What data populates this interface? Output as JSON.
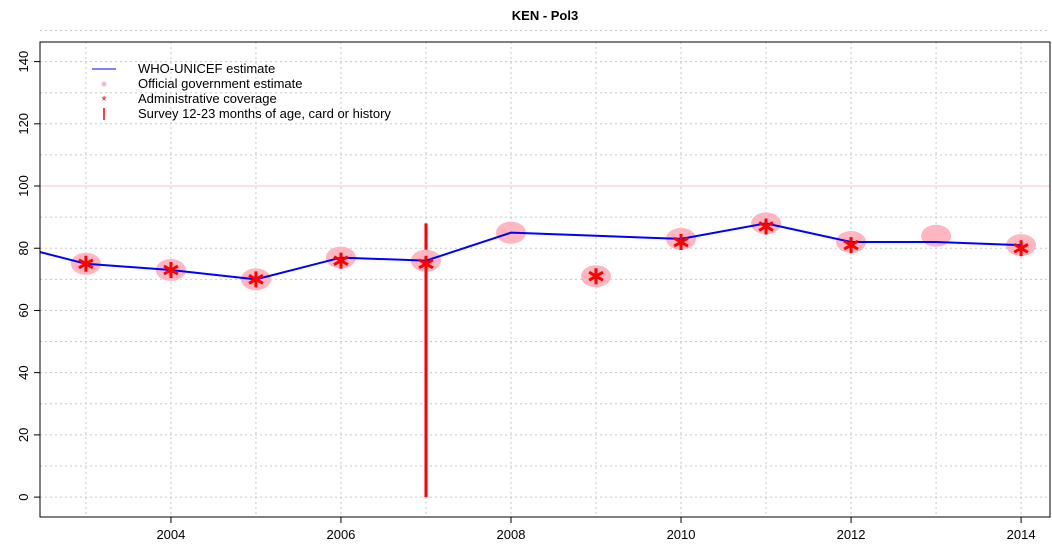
{
  "chart_data": {
    "type": "line",
    "title": "KEN  -  Pol3",
    "x": [
      2002,
      2003,
      2004,
      2005,
      2006,
      2007,
      2008,
      2009,
      2010,
      2011,
      2012,
      2013,
      2014
    ],
    "series": [
      {
        "name": "WHO-UNICEF estimate",
        "color": "#0000ff",
        "kind": "line",
        "values": [
          82,
          75,
          73,
          70,
          77,
          76,
          85,
          84,
          83,
          88,
          82,
          82,
          81
        ]
      },
      {
        "name": "Official government estimate",
        "color": "#ffb6c1",
        "kind": "circle",
        "values": [
          null,
          75,
          73,
          70,
          77,
          76,
          85,
          71,
          83,
          88,
          82,
          84,
          81
        ]
      },
      {
        "name": "Administrative coverage",
        "color": "#ff0000",
        "kind": "asterisk",
        "values": [
          null,
          75,
          73,
          70,
          76,
          75,
          null,
          71,
          82,
          87,
          81,
          null,
          80
        ]
      },
      {
        "name": "Survey 12-23 months of age, card or history",
        "color": "#ff0000",
        "kind": "bar",
        "values": [
          null,
          null,
          null,
          null,
          null,
          88,
          null,
          null,
          null,
          null,
          null,
          null,
          null
        ]
      }
    ],
    "reference_line": 100,
    "reference_color": "#ffc0cb",
    "xlim": [
      2002.46,
      2014.34
    ],
    "ylim": [
      -6.4,
      146.3
    ],
    "xticks": [
      2004,
      2006,
      2008,
      2010,
      2012,
      2014
    ],
    "yticks": [
      0,
      20,
      40,
      60,
      80,
      100,
      120,
      140
    ],
    "grid": true,
    "legend": "top-left"
  }
}
